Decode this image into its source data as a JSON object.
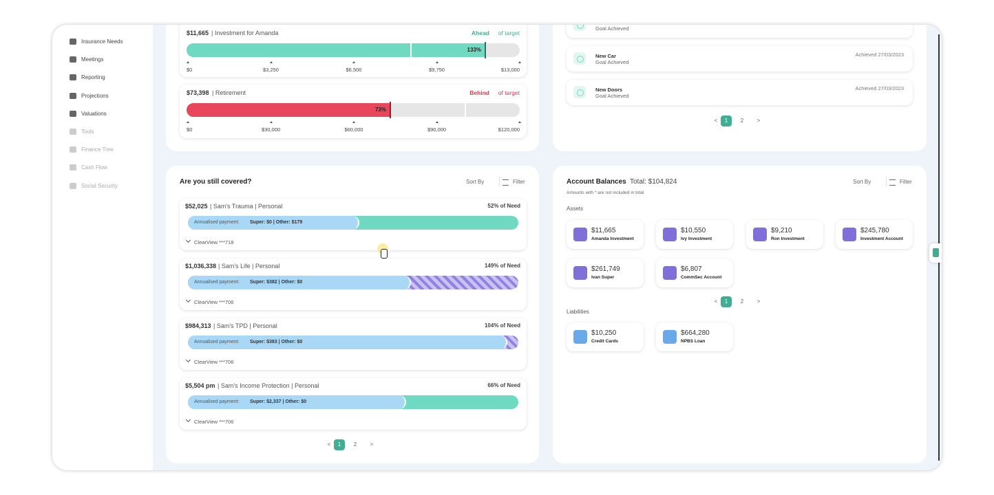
{
  "sidebar": {
    "items": [
      "Insurance Needs",
      "Meetings",
      "Reporting",
      "Projections",
      "Valuations",
      "Tools",
      "Finance Tree",
      "Cash Flow",
      "Social Security"
    ]
  },
  "goals": {
    "items": [
      {
        "amount": "$11,665",
        "label": "| Investment for Amanda",
        "status": "Ahead",
        "status_suffix": "of target",
        "percent": "133%",
        "ticks": [
          "$0",
          "$3,250",
          "$6,500",
          "$9,750",
          "$13,000"
        ]
      },
      {
        "amount": "$73,398",
        "label": "| Retirement",
        "status": "Behind",
        "status_suffix": "of target",
        "percent": "73%",
        "ticks": [
          "$0",
          "$30,000",
          "$60,000",
          "$90,000",
          "$120,000"
        ]
      }
    ]
  },
  "achieved": {
    "items": [
      {
        "status": "Goal Achieved"
      },
      {
        "name": "New Car",
        "status": "Goal Achieved",
        "date": "Achieved 27/03/2023"
      },
      {
        "name": "New Doors",
        "status": "Goal Achieved",
        "date": "Achieved 27/03/2023"
      }
    ],
    "pagination": {
      "prev": "<",
      "pages": [
        "1",
        "2"
      ],
      "next": ">"
    }
  },
  "cover": {
    "title": "Are you still covered?",
    "sort": "Sort By",
    "filter": "Filter",
    "items": [
      {
        "amount": "$52,025",
        "label": "| Sam's Trauma | Personal",
        "need": "52% of Need",
        "payment_label": "Annualised payment:",
        "payment": "Super: $0 | Other: $179",
        "provider": "ClearView ***718"
      },
      {
        "amount": "$1,036,338",
        "label": "| Sam's Life | Personal",
        "need": "149% of Need",
        "payment_label": "Annualised payment:",
        "payment": "Super: $382 | Other: $0",
        "provider": "ClearView ***706"
      },
      {
        "amount": "$984,313",
        "label": "| Sam's TPD | Personal",
        "need": "104% of Need",
        "payment_label": "Annualised payment:",
        "payment": "Super: $383 | Other: $0",
        "provider": "ClearView ***706"
      },
      {
        "amount": "$5,504 pm",
        "label": "| Sam's Income Protection | Personal",
        "need": "66% of Need",
        "payment_label": "Annualised payment:",
        "payment": "Super: $2,337 | Other: $0",
        "provider": "ClearView ***706"
      }
    ],
    "pagination": {
      "prev": "<",
      "pages": [
        "1",
        "2"
      ],
      "next": ">"
    }
  },
  "accounts": {
    "title": "Account Balances",
    "total": "Total: $104,824",
    "sort": "Sort By",
    "filter": "Filter",
    "note": "Amounts with * are not included in total",
    "assets_heading": "Assets",
    "assets": [
      {
        "amount": "$11,665",
        "name": "Amanda Investment"
      },
      {
        "amount": "$10,550",
        "name": "Ivy Investment"
      },
      {
        "amount": "$9,210",
        "name": "Ron Investment"
      },
      {
        "amount": "$245,780",
        "name": "Investment Account"
      },
      {
        "amount": "$261,749",
        "name": "Ivan Super"
      },
      {
        "amount": "$6,807",
        "name": "CommSec Account"
      }
    ],
    "pagination": {
      "prev": "<",
      "pages": [
        "1",
        "2"
      ],
      "next": ">"
    },
    "liabilities_heading": "Liabilities",
    "liabilities": [
      {
        "amount": "$10,250",
        "name": "Credit Cards"
      },
      {
        "amount": "$664,280",
        "name": "NPBS Loan"
      }
    ]
  }
}
